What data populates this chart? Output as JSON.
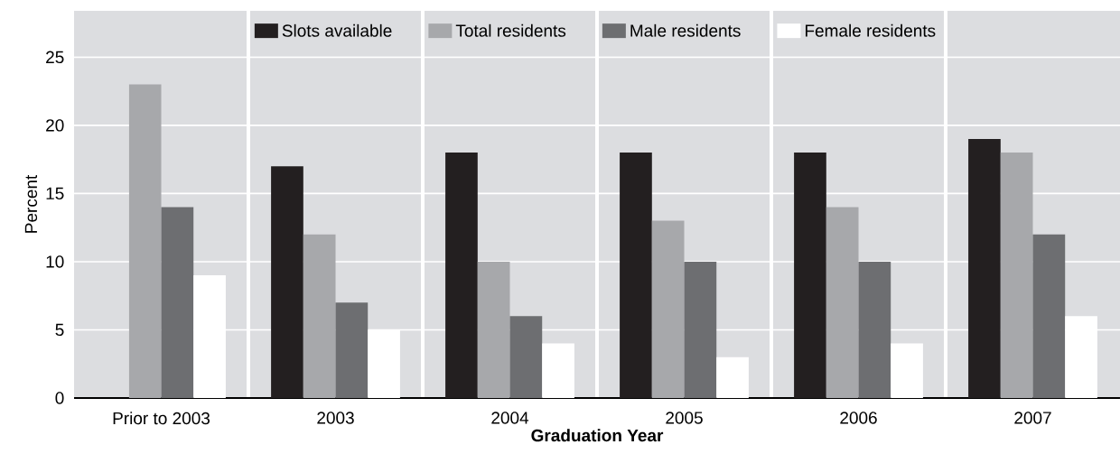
{
  "chart_data": {
    "type": "bar",
    "xlabel": "Graduation Year",
    "ylabel": "Percent",
    "categories": [
      "Prior to 2003",
      "2003",
      "2004",
      "2005",
      "2006",
      "2007"
    ],
    "series": [
      {
        "name": "Slots available",
        "color": "#231f20",
        "values": [
          null,
          17,
          18,
          18,
          18,
          19
        ]
      },
      {
        "name": "Total residents",
        "color": "#a7a8ab",
        "values": [
          23,
          12,
          10,
          13,
          14,
          18
        ]
      },
      {
        "name": "Male residents",
        "color": "#6d6e71",
        "values": [
          14,
          7,
          6,
          10,
          10,
          12
        ]
      },
      {
        "name": "Female residents",
        "color": "#ffffff",
        "values": [
          9,
          5,
          4,
          3,
          4,
          6
        ]
      }
    ],
    "ylim": [
      0,
      28.4
    ],
    "yticks": [
      0,
      5,
      10,
      15,
      20,
      25
    ],
    "grid": true,
    "legend": "top"
  }
}
